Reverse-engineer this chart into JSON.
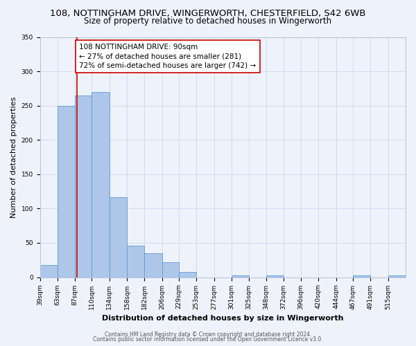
{
  "title1": "108, NOTTINGHAM DRIVE, WINGERWORTH, CHESTERFIELD, S42 6WB",
  "title2": "Size of property relative to detached houses in Wingerworth",
  "xlabel": "Distribution of detached houses by size in Wingerworth",
  "ylabel": "Number of detached properties",
  "bins": [
    "39sqm",
    "63sqm",
    "87sqm",
    "110sqm",
    "134sqm",
    "158sqm",
    "182sqm",
    "206sqm",
    "229sqm",
    "253sqm",
    "277sqm",
    "301sqm",
    "325sqm",
    "348sqm",
    "372sqm",
    "396sqm",
    "420sqm",
    "444sqm",
    "467sqm",
    "491sqm",
    "515sqm"
  ],
  "bar_heights": [
    18,
    250,
    265,
    270,
    117,
    46,
    35,
    22,
    8,
    0,
    0,
    3,
    0,
    3,
    0,
    0,
    0,
    0,
    3,
    0,
    3
  ],
  "bar_color": "#aec6e8",
  "bar_edgecolor": "#5b9bd5",
  "property_line_x": 90,
  "annotation_line1": "108 NOTTINGHAM DRIVE: 90sqm",
  "annotation_line2": "← 27% of detached houses are smaller (281)",
  "annotation_line3": "72% of semi-detached houses are larger (742) →",
  "annotation_box_edgecolor": "#cc0000",
  "vline_color": "#cc0000",
  "footer1": "Contains HM Land Registry data © Crown copyright and database right 2024.",
  "footer2": "Contains public sector information licensed under the Open Government Licence v3.0.",
  "ylim": [
    0,
    350
  ],
  "bg_color": "#eef2fa",
  "plot_bg_color": "#eef2fa",
  "title_fontsize": 9.5,
  "subtitle_fontsize": 8.5,
  "xlabel_fontsize": 8,
  "ylabel_fontsize": 8,
  "tick_fontsize": 6.5,
  "annotation_fontsize": 7.5,
  "footer_fontsize": 5.5
}
